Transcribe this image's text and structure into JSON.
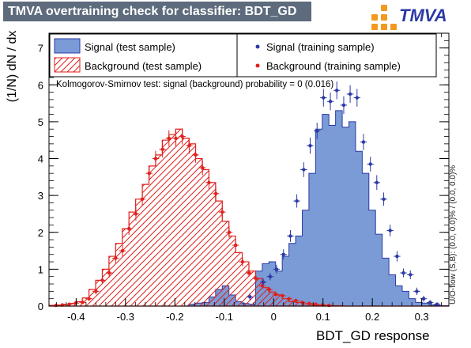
{
  "title": "TMVA overtraining check for classifier: BDT_GD",
  "logo_text": "TMVA",
  "colors": {
    "signal_fill": "#7a9bd6",
    "signal_line": "#2b3aa6",
    "background_line": "#e0201c",
    "title_bg": "#5d6b7d",
    "logo_orange": "#f39a1e"
  },
  "legend": {
    "signal_test": "Signal (test sample)",
    "background_test": "Background (test sample)",
    "signal_train": "Signal (training sample)",
    "background_train": "Background (training sample)"
  },
  "ks_text": "Kolmogorov-Smirnov test: signal (background) probability =     0 (0.016)",
  "overflow_text": "U/O-flow (S,B): (0.0, 0.0)% / (0.0, 0.0)%",
  "chart_data": {
    "type": "bar",
    "xlabel": "BDT_GD response",
    "ylabel": "(1/N) dN / dx",
    "xlim": [
      -0.455,
      0.355
    ],
    "ylim": [
      0,
      7.4
    ],
    "xticks": [
      -0.4,
      -0.3,
      -0.2,
      -0.1,
      0,
      0.1,
      0.2,
      0.3
    ],
    "yticks": [
      0,
      1,
      2,
      3,
      4,
      5,
      6,
      7
    ],
    "bin_edges_start": -0.455,
    "bin_width": 0.0135,
    "series": [
      {
        "name": "Signal (test sample)",
        "style": "filled-histogram",
        "values": [
          0,
          0,
          0,
          0,
          0,
          0,
          0,
          0,
          0,
          0,
          0,
          0,
          0,
          0,
          0,
          0,
          0,
          0,
          0,
          0,
          0,
          0.05,
          0.08,
          0.1,
          0.25,
          0.45,
          0.55,
          0.3,
          0.12,
          0.07,
          0.05,
          0.95,
          1.15,
          1.2,
          0.95,
          1.35,
          1.7,
          1.9,
          2.6,
          3.6,
          4.8,
          5.2,
          4.9,
          5.3,
          4.85,
          5.0,
          4.2,
          3.6,
          2.6,
          1.95,
          1.3,
          0.85,
          0.55,
          0.4,
          0.2,
          0.1,
          0.08,
          0.03,
          0.02,
          0.01
        ]
      },
      {
        "name": "Background (test sample)",
        "style": "hatched-histogram",
        "values": [
          0.02,
          0.03,
          0.05,
          0.07,
          0.12,
          0.22,
          0.45,
          0.7,
          1.0,
          1.35,
          1.7,
          2.1,
          2.55,
          2.9,
          3.3,
          3.8,
          4.1,
          4.5,
          4.65,
          4.8,
          4.55,
          4.4,
          4.0,
          3.7,
          3.35,
          2.85,
          2.3,
          1.9,
          1.45,
          1.2,
          0.95,
          0.75,
          0.5,
          0.38,
          0.3,
          0.2,
          0.12,
          0.1,
          0.06,
          0.04,
          0.03,
          0.02,
          0.01,
          0.01,
          0,
          0,
          0,
          0,
          0,
          0,
          0,
          0,
          0,
          0,
          0,
          0,
          0,
          0,
          0,
          0
        ]
      },
      {
        "name": "Signal (training sample)",
        "style": "points",
        "x": [
          -0.048,
          -0.021,
          -0.007,
          0.006,
          0.02,
          0.034,
          0.047,
          0.061,
          0.074,
          0.088,
          0.101,
          0.115,
          0.128,
          0.142,
          0.155,
          0.169,
          0.182,
          0.196,
          0.209,
          0.223,
          0.236,
          0.25,
          0.263,
          0.277,
          0.29,
          0.304,
          0.317,
          0.331
        ],
        "y": [
          0.25,
          0.65,
          0.8,
          1.0,
          1.4,
          1.9,
          2.85,
          3.7,
          4.35,
          4.75,
          5.65,
          5.55,
          5.85,
          5.45,
          5.75,
          5.65,
          4.45,
          3.85,
          3.35,
          2.9,
          2.05,
          1.35,
          0.9,
          0.85,
          0.4,
          0.2,
          0.1,
          0.05
        ],
        "err": [
          0.1,
          0.1,
          0.1,
          0.12,
          0.14,
          0.16,
          0.18,
          0.2,
          0.22,
          0.22,
          0.24,
          0.24,
          0.24,
          0.24,
          0.24,
          0.24,
          0.22,
          0.2,
          0.2,
          0.18,
          0.16,
          0.14,
          0.12,
          0.12,
          0.1,
          0.08,
          0.06,
          0.05
        ]
      },
      {
        "name": "Background (training sample)",
        "style": "points",
        "x": [
          -0.441,
          -0.428,
          -0.414,
          -0.401,
          -0.387,
          -0.374,
          -0.36,
          -0.347,
          -0.333,
          -0.32,
          -0.306,
          -0.293,
          -0.279,
          -0.266,
          -0.252,
          -0.239,
          -0.225,
          -0.212,
          -0.198,
          -0.185,
          -0.171,
          -0.158,
          -0.144,
          -0.131,
          -0.117,
          -0.104,
          -0.09,
          -0.077,
          -0.063,
          -0.05,
          -0.036,
          -0.023,
          -0.009,
          0.004,
          0.018,
          0.031,
          0.045,
          0.058,
          0.072,
          0.085,
          0.099,
          0.112
        ],
        "y": [
          0.02,
          0.03,
          0.05,
          0.08,
          0.1,
          0.2,
          0.4,
          0.7,
          0.9,
          1.3,
          1.5,
          2.1,
          2.5,
          2.9,
          3.6,
          4.0,
          4.25,
          4.55,
          4.55,
          4.6,
          4.35,
          4.1,
          3.75,
          3.35,
          3.05,
          2.55,
          2.0,
          1.65,
          1.2,
          0.9,
          0.75,
          0.55,
          0.45,
          0.32,
          0.28,
          0.2,
          0.15,
          0.1,
          0.07,
          0.05,
          0.03,
          0.02
        ],
        "err": [
          0.02,
          0.02,
          0.03,
          0.04,
          0.05,
          0.06,
          0.08,
          0.1,
          0.12,
          0.14,
          0.15,
          0.17,
          0.18,
          0.19,
          0.2,
          0.21,
          0.22,
          0.22,
          0.22,
          0.22,
          0.22,
          0.21,
          0.2,
          0.19,
          0.18,
          0.17,
          0.15,
          0.14,
          0.12,
          0.1,
          0.09,
          0.08,
          0.07,
          0.06,
          0.05,
          0.04,
          0.04,
          0.03,
          0.03,
          0.02,
          0.02,
          0.02
        ]
      }
    ]
  }
}
